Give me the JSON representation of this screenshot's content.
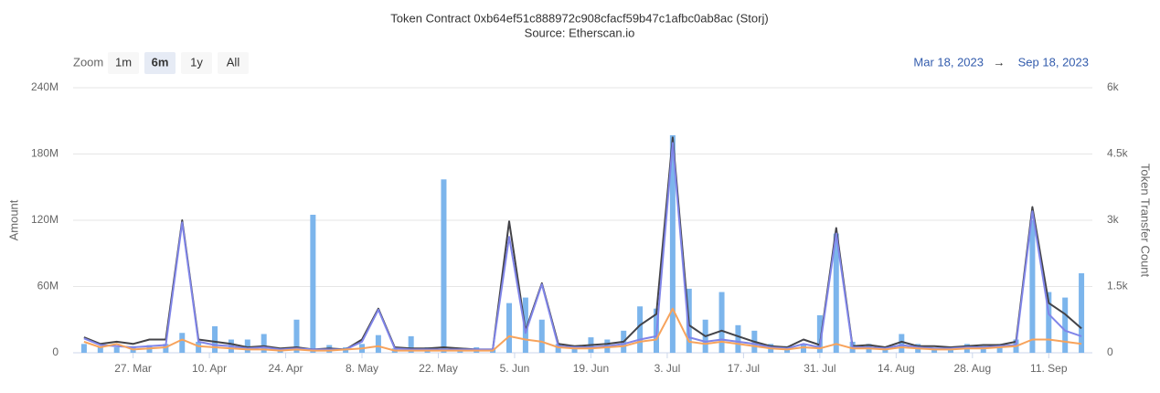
{
  "chart_data": {
    "type": "combo",
    "title": "Token Contract 0xb64ef51c888972c908cfacf59b47c1afbc0ab8ac (Storj)",
    "subtitle": "Source: Etherscan.io",
    "zoom": {
      "label": "Zoom",
      "buttons": [
        "1m",
        "6m",
        "1y",
        "All"
      ],
      "selected": 1
    },
    "range": {
      "from": "Mar 18, 2023",
      "arrow": "→",
      "to": "Sep 18, 2023"
    },
    "y_label": "Amount",
    "y2_label": "Token Transfer Count",
    "grid": true,
    "xlim": [
      -2,
      185
    ],
    "xticks": [
      {
        "value": 9,
        "label": "27. Mar"
      },
      {
        "value": 23,
        "label": "10. Apr"
      },
      {
        "value": 37,
        "label": "24. Apr"
      },
      {
        "value": 51,
        "label": "8. May"
      },
      {
        "value": 65,
        "label": "22. May"
      },
      {
        "value": 79,
        "label": "5. Jun"
      },
      {
        "value": 93,
        "label": "19. Jun"
      },
      {
        "value": 107,
        "label": "3. Jul"
      },
      {
        "value": 121,
        "label": "17. Jul"
      },
      {
        "value": 135,
        "label": "31. Jul"
      },
      {
        "value": 149,
        "label": "14. Aug"
      },
      {
        "value": 163,
        "label": "28. Aug"
      },
      {
        "value": 177,
        "label": "11. Sep"
      }
    ],
    "ylim": [
      0,
      240
    ],
    "yticks": [
      0,
      {
        "value": 60,
        "label": "60M"
      },
      {
        "value": 120,
        "label": "120M"
      },
      {
        "value": 180,
        "label": "180M"
      },
      {
        "value": 240,
        "label": "240M"
      }
    ],
    "y2lim": [
      0,
      6
    ],
    "y2ticks": [
      0,
      {
        "value": 1.5,
        "label": "1.5k"
      },
      {
        "value": 3,
        "label": "3k"
      },
      {
        "value": 4.5,
        "label": "4.5k"
      },
      {
        "value": 6,
        "label": "6k"
      }
    ],
    "x": [
      0,
      3,
      6,
      9,
      12,
      15,
      18,
      21,
      24,
      27,
      30,
      33,
      36,
      39,
      42,
      45,
      48,
      51,
      54,
      57,
      60,
      63,
      66,
      69,
      72,
      75,
      78,
      81,
      84,
      87,
      90,
      93,
      96,
      99,
      102,
      105,
      108,
      111,
      114,
      117,
      120,
      123,
      126,
      129,
      132,
      135,
      138,
      141,
      144,
      147,
      150,
      153,
      156,
      159,
      162,
      165,
      168,
      171,
      174,
      177,
      180,
      183
    ],
    "series": [
      {
        "type": "bar",
        "color": "#7cb5ec",
        "values": [
          8,
          6,
          5,
          6,
          7,
          8,
          18,
          10,
          24,
          12,
          12,
          17,
          4,
          30,
          125,
          7,
          5,
          8,
          16,
          4,
          15,
          5,
          157,
          3,
          5,
          3,
          45,
          50,
          30,
          8,
          5,
          14,
          12,
          20,
          42,
          40,
          197,
          58,
          30,
          55,
          25,
          20,
          8,
          6,
          8,
          34,
          108,
          10,
          8,
          5,
          17,
          8,
          4,
          5,
          8,
          6,
          8,
          12,
          120,
          55,
          50,
          72
        ]
      },
      {
        "type": "line",
        "color": "#434348",
        "values": [
          14,
          8,
          10,
          8,
          12,
          12,
          120,
          12,
          10,
          8,
          5,
          6,
          4,
          5,
          3,
          4,
          3,
          12,
          40,
          5,
          4,
          4,
          5,
          4,
          3,
          3,
          119,
          20,
          63,
          8,
          6,
          7,
          8,
          10,
          25,
          35,
          195,
          25,
          15,
          20,
          15,
          10,
          6,
          5,
          12,
          7,
          113,
          6,
          7,
          5,
          10,
          6,
          6,
          5,
          6,
          7,
          7,
          10,
          132,
          45,
          35,
          22
        ]
      },
      {
        "type": "line",
        "color": "#8085e9",
        "values": [
          13,
          7,
          6,
          5,
          6,
          7,
          118,
          10,
          7,
          6,
          4,
          5,
          3,
          4,
          3,
          3,
          3,
          10,
          39,
          4,
          3,
          3,
          3,
          3,
          3,
          3,
          105,
          18,
          62,
          6,
          5,
          5,
          6,
          8,
          12,
          15,
          190,
          14,
          10,
          12,
          10,
          8,
          5,
          4,
          8,
          5,
          108,
          5,
          5,
          4,
          7,
          5,
          4,
          4,
          5,
          5,
          6,
          7,
          128,
          35,
          20,
          15
        ]
      },
      {
        "type": "line",
        "color": "#f7a35c",
        "values": [
          10,
          5,
          8,
          3,
          4,
          5,
          12,
          6,
          5,
          4,
          3,
          3,
          2,
          3,
          2,
          2,
          3,
          4,
          6,
          2,
          2,
          2,
          2,
          2,
          2,
          2,
          15,
          12,
          10,
          5,
          4,
          4,
          5,
          6,
          10,
          12,
          40,
          10,
          8,
          10,
          8,
          6,
          4,
          3,
          5,
          4,
          8,
          4,
          4,
          3,
          5,
          4,
          3,
          3,
          4,
          4,
          5,
          6,
          12,
          12,
          10,
          8
        ]
      }
    ]
  }
}
